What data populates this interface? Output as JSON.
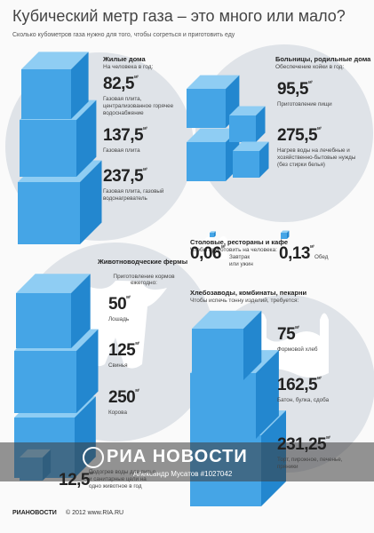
{
  "header": {
    "title": "Кубический метр газа – это много или мало?",
    "subtitle": "Сколько кубометров газа нужно для того, чтобы согреться и приготовить еду"
  },
  "unit": "м³",
  "sections": [
    {
      "title": "Жилые дома",
      "subtitle": "На человека в год:",
      "items": [
        {
          "value": "82,5",
          "label": "Газовая плита, централизованное горячее водоснабжение"
        },
        {
          "value": "137,5",
          "label": "Газовая плита"
        },
        {
          "value": "237,5",
          "label": "Газовая плита, газовый водонагреватель"
        }
      ]
    },
    {
      "title": "Больницы, родильные дома",
      "subtitle": "Обеспечение койки в год:",
      "items": [
        {
          "value": "95,5",
          "label": "Приготовление пищи"
        },
        {
          "value": "275,5",
          "label": "Нагрев воды на лечебные и хозяйственно-бытовые нужды (без стирки белья)"
        }
      ]
    },
    {
      "title": "Столовые, рестораны и кафе",
      "subtitle": "Чтобы приготовить на человека:",
      "items": [
        {
          "value": "0,06",
          "label": "Завтрак или ужин"
        },
        {
          "value": "0,13",
          "label": "Обед"
        }
      ]
    },
    {
      "title": "Животноводческие фермы",
      "subtitle": "Приготовление кормов ежегодно:",
      "items": [
        {
          "value": "50",
          "label": "Лошадь"
        },
        {
          "value": "125",
          "label": "Свинья"
        },
        {
          "value": "250",
          "label": "Корова"
        },
        {
          "value": "12,5",
          "label": "Подогрев воды для питья и санитарные цели на одно животное в год"
        }
      ]
    },
    {
      "title": "Хлебозаводы, комбинаты, пекарни",
      "subtitle": "Чтобы испечь тонну изделий, требуется:",
      "items": [
        {
          "value": "75",
          "label": "Формовой хлеб"
        },
        {
          "value": "162,5",
          "label": "Батон, булка, сдоба"
        },
        {
          "value": "231,25",
          "label": "Торт, пирожное, печенье, пряники"
        }
      ]
    }
  ],
  "watermark": {
    "brand": "РИА НОВОСТИ",
    "author": "Александр Мусатов #1027042"
  },
  "footer": {
    "logo": "РИАНОВОСТИ",
    "copyright": "© 2012 www.RIA.RU"
  }
}
